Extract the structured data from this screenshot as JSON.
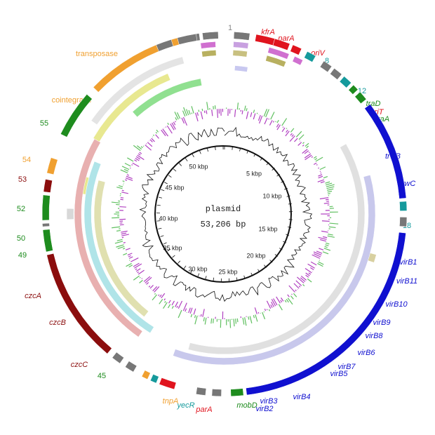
{
  "center": {
    "name": "plasmid",
    "size": "53,206 bp"
  },
  "scale": [
    "5 kbp",
    "10 kbp",
    "15 kbp",
    "20 kbp",
    "25 kbp",
    "30 kbp",
    "35 kbp",
    "40 kbp",
    "45 kbp",
    "50 kbp"
  ],
  "labels": [
    "1",
    "kfrA",
    "parA",
    "oriV",
    "8",
    "12",
    "traD",
    "oriT",
    "traA",
    "trwB",
    "trwC",
    "18",
    "virB1",
    "virB11",
    "virB10",
    "virB9",
    "virB8",
    "virB6",
    "virB7",
    "virB5",
    "virB4",
    "virB3",
    "virB2",
    "mobD",
    "parA",
    "yecR",
    "tnpA",
    "45",
    "czcC",
    "czcB",
    "czcA",
    "49",
    "50",
    "52",
    "53",
    "54",
    "55",
    "cointegrase",
    "transposase"
  ]
}
